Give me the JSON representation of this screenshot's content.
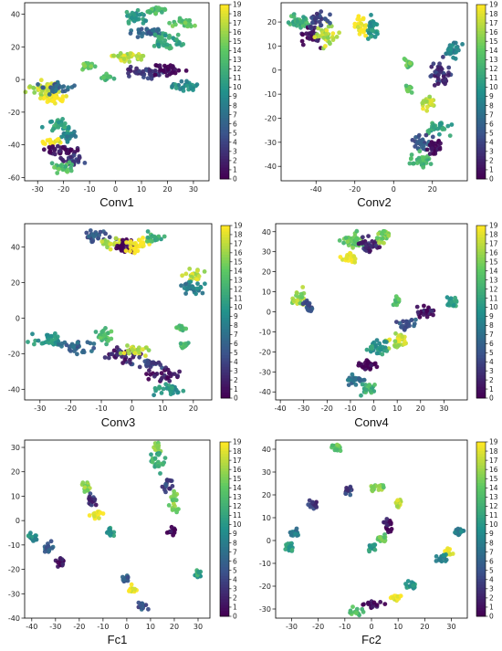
{
  "figure": {
    "background": "#ffffff"
  },
  "colormap": {
    "name": "viridis",
    "stops": [
      "#440154",
      "#3b528b",
      "#21918c",
      "#5ec962",
      "#fde725"
    ]
  },
  "chart_data": [
    {
      "type": "scatter",
      "caption": "Conv1",
      "xlim": [
        -35,
        36
      ],
      "ylim": [
        -62,
        47
      ],
      "xticks": [
        -30,
        -20,
        -10,
        0,
        10,
        20,
        30
      ],
      "yticks": [
        -60,
        -40,
        -20,
        0,
        20,
        40
      ],
      "colorbar": {
        "min": 0,
        "max": 19,
        "ticks": [
          0,
          1,
          2,
          3,
          4,
          5,
          6,
          7,
          8,
          9,
          10,
          11,
          12,
          13,
          14,
          15,
          16,
          17,
          18,
          19
        ]
      },
      "clusters": [
        {
          "x": -28,
          "y": -5,
          "w": 6,
          "h": 5,
          "c": 17
        },
        {
          "x": -24,
          "y": -12,
          "w": 5,
          "h": 3,
          "c": 19
        },
        {
          "x": -22,
          "y": -5,
          "w": 5,
          "h": 4,
          "c": 6
        },
        {
          "x": -21,
          "y": -28,
          "w": 5,
          "h": 4,
          "c": 11
        },
        {
          "x": -18,
          "y": -35,
          "w": 4,
          "h": 3,
          "c": 8
        },
        {
          "x": -24,
          "y": -38,
          "w": 4,
          "h": 2,
          "c": 19
        },
        {
          "x": -20,
          "y": -44,
          "w": 7,
          "h": 3,
          "c": 1
        },
        {
          "x": -16,
          "y": -50,
          "w": 5,
          "h": 3,
          "c": 3
        },
        {
          "x": -21,
          "y": -54,
          "w": 4,
          "h": 3,
          "c": 13
        },
        {
          "x": -11,
          "y": 8,
          "w": 3,
          "h": 2,
          "c": 14
        },
        {
          "x": -4,
          "y": 1,
          "w": 3,
          "h": 2,
          "c": 13
        },
        {
          "x": 5,
          "y": 14,
          "w": 7,
          "h": 3,
          "c": 17
        },
        {
          "x": 8,
          "y": 38,
          "w": 4,
          "h": 4,
          "c": 10
        },
        {
          "x": 15,
          "y": 42,
          "w": 4,
          "h": 2,
          "c": 13
        },
        {
          "x": 13,
          "y": 29,
          "w": 7,
          "h": 3,
          "c": 6
        },
        {
          "x": 20,
          "y": 24,
          "w": 6,
          "h": 4,
          "c": 11
        },
        {
          "x": 26,
          "y": 35,
          "w": 5,
          "h": 3,
          "c": 14
        },
        {
          "x": 12,
          "y": 4,
          "w": 7,
          "h": 4,
          "c": 3
        },
        {
          "x": 20,
          "y": 6,
          "w": 6,
          "h": 3,
          "c": 0
        },
        {
          "x": 27,
          "y": -4,
          "w": 5,
          "h": 3,
          "c": 9
        }
      ]
    },
    {
      "type": "scatter",
      "caption": "Conv2",
      "xlim": [
        -58,
        38
      ],
      "ylim": [
        -46,
        28
      ],
      "xticks": [
        -40,
        -20,
        0,
        20
      ],
      "yticks": [
        -40,
        -30,
        -20,
        -10,
        0,
        10,
        20
      ],
      "colorbar": {
        "min": 0,
        "max": 19,
        "ticks": [
          0,
          1,
          2,
          3,
          4,
          5,
          6,
          7,
          8,
          9,
          10,
          11,
          12,
          13,
          14,
          15,
          16,
          17,
          18,
          19
        ]
      },
      "clusters": [
        {
          "x": -48,
          "y": 20,
          "w": 6,
          "h": 3,
          "c": 12
        },
        {
          "x": -42,
          "y": 14,
          "w": 5,
          "h": 4,
          "c": 1
        },
        {
          "x": -35,
          "y": 15,
          "w": 5,
          "h": 5,
          "c": 17
        },
        {
          "x": -38,
          "y": 21,
          "w": 5,
          "h": 3,
          "c": 4
        },
        {
          "x": -16,
          "y": 19,
          "w": 4,
          "h": 4,
          "c": 19
        },
        {
          "x": -11,
          "y": 17,
          "w": 3,
          "h": 5,
          "c": 10
        },
        {
          "x": 8,
          "y": 3,
          "w": 2,
          "h": 2,
          "c": 14
        },
        {
          "x": 8,
          "y": -8,
          "w": 2,
          "h": 2,
          "c": 14
        },
        {
          "x": 30,
          "y": 8,
          "w": 4,
          "h": 4,
          "c": 8
        },
        {
          "x": 24,
          "y": -2,
          "w": 5,
          "h": 5,
          "c": 3
        },
        {
          "x": 18,
          "y": -14,
          "w": 4,
          "h": 3,
          "c": 17
        },
        {
          "x": 23,
          "y": -24,
          "w": 6,
          "h": 3,
          "c": 11
        },
        {
          "x": 15,
          "y": -30,
          "w": 6,
          "h": 3,
          "c": 5
        },
        {
          "x": 14,
          "y": -38,
          "w": 6,
          "h": 3,
          "c": 13
        },
        {
          "x": 22,
          "y": -32,
          "w": 4,
          "h": 3,
          "c": 0
        }
      ]
    },
    {
      "type": "scatter",
      "caption": "Conv3",
      "xlim": [
        -35,
        26
      ],
      "ylim": [
        -46,
        53
      ],
      "xticks": [
        -30,
        -20,
        -10,
        0,
        10,
        20
      ],
      "yticks": [
        -40,
        -20,
        0,
        20,
        40
      ],
      "colorbar": {
        "min": 0,
        "max": 19,
        "ticks": [
          0,
          1,
          2,
          3,
          4,
          5,
          6,
          7,
          8,
          9,
          10,
          11,
          12,
          13,
          14,
          15,
          16,
          17,
          18,
          19
        ]
      },
      "clusters": [
        {
          "x": -12,
          "y": 46,
          "w": 5,
          "h": 3,
          "c": 5
        },
        {
          "x": -7,
          "y": 42,
          "w": 4,
          "h": 3,
          "c": 17
        },
        {
          "x": -2,
          "y": 40,
          "w": 4,
          "h": 4,
          "c": 0
        },
        {
          "x": 3,
          "y": 41,
          "w": 4,
          "h": 4,
          "c": 19
        },
        {
          "x": 7,
          "y": 45,
          "w": 3,
          "h": 3,
          "c": 12
        },
        {
          "x": 20,
          "y": 24,
          "w": 3,
          "h": 3,
          "c": 17
        },
        {
          "x": 20,
          "y": 17,
          "w": 4,
          "h": 4,
          "c": 8
        },
        {
          "x": 16,
          "y": -6,
          "w": 2,
          "h": 2,
          "c": 13
        },
        {
          "x": 17,
          "y": -15,
          "w": 2,
          "h": 2,
          "c": 13
        },
        {
          "x": -27,
          "y": -12,
          "w": 5,
          "h": 4,
          "c": 10
        },
        {
          "x": -18,
          "y": -16,
          "w": 5,
          "h": 4,
          "c": 6
        },
        {
          "x": -9,
          "y": -10,
          "w": 3,
          "h": 4,
          "c": 13
        },
        {
          "x": -4,
          "y": -20,
          "w": 5,
          "h": 4,
          "c": 2
        },
        {
          "x": 1,
          "y": -18,
          "w": 4,
          "h": 3,
          "c": 17
        },
        {
          "x": 5,
          "y": -26,
          "w": 5,
          "h": 3,
          "c": 4
        },
        {
          "x": 10,
          "y": -32,
          "w": 5,
          "h": 3,
          "c": 1
        },
        {
          "x": 12,
          "y": -40,
          "w": 5,
          "h": 3,
          "c": 10
        }
      ]
    },
    {
      "type": "scatter",
      "caption": "Conv4",
      "xlim": [
        -42,
        40
      ],
      "ylim": [
        -44,
        44
      ],
      "xticks": [
        -40,
        -30,
        -20,
        -10,
        0,
        10,
        20,
        30
      ],
      "yticks": [
        -40,
        -30,
        -20,
        -10,
        0,
        10,
        20,
        30,
        40
      ],
      "colorbar": {
        "min": 0,
        "max": 19,
        "ticks": [
          0,
          1,
          2,
          3,
          4,
          5,
          6,
          7,
          8,
          9,
          10,
          11,
          12,
          13,
          14,
          15,
          16,
          17,
          18,
          19
        ]
      },
      "clusters": [
        {
          "x": -10,
          "y": 36,
          "w": 5,
          "h": 4,
          "c": 14
        },
        {
          "x": -2,
          "y": 34,
          "w": 4,
          "h": 4,
          "c": 2
        },
        {
          "x": 4,
          "y": 37,
          "w": 3,
          "h": 3,
          "c": 15
        },
        {
          "x": -10,
          "y": 27,
          "w": 4,
          "h": 3,
          "c": 19
        },
        {
          "x": -32,
          "y": 7,
          "w": 3,
          "h": 4,
          "c": 16
        },
        {
          "x": -28,
          "y": 3,
          "w": 3,
          "h": 3,
          "c": 5
        },
        {
          "x": 10,
          "y": 5,
          "w": 2,
          "h": 2,
          "c": 14
        },
        {
          "x": 22,
          "y": 0,
          "w": 4,
          "h": 3,
          "c": 1
        },
        {
          "x": 33,
          "y": 5,
          "w": 3,
          "h": 3,
          "c": 11
        },
        {
          "x": 14,
          "y": -6,
          "w": 4,
          "h": 3,
          "c": 5
        },
        {
          "x": 10,
          "y": -15,
          "w": 4,
          "h": 4,
          "c": 17
        },
        {
          "x": 2,
          "y": -18,
          "w": 4,
          "h": 4,
          "c": 10
        },
        {
          "x": -3,
          "y": -26,
          "w": 4,
          "h": 3,
          "c": 0
        },
        {
          "x": -8,
          "y": -34,
          "w": 4,
          "h": 3,
          "c": 7
        },
        {
          "x": -2,
          "y": -38,
          "w": 4,
          "h": 3,
          "c": 12
        }
      ]
    },
    {
      "type": "scatter",
      "caption": "Fc1",
      "xlim": [
        -43,
        35
      ],
      "ylim": [
        -40,
        33
      ],
      "xticks": [
        -40,
        -30,
        -20,
        -10,
        0,
        10,
        20,
        30
      ],
      "yticks": [
        -40,
        -30,
        -20,
        -10,
        0,
        10,
        20,
        30
      ],
      "colorbar": {
        "min": 0,
        "max": 19,
        "ticks": [
          0,
          1,
          2,
          3,
          4,
          5,
          6,
          7,
          8,
          9,
          10,
          11,
          12,
          13,
          14,
          15,
          16,
          17,
          18,
          19
        ]
      },
      "clusters": [
        {
          "x": 12,
          "y": 30,
          "w": 2,
          "h": 2,
          "c": 16
        },
        {
          "x": 13,
          "y": 24,
          "w": 3,
          "h": 4,
          "c": 12
        },
        {
          "x": 18,
          "y": 15,
          "w": 2,
          "h": 3,
          "c": 4
        },
        {
          "x": 20,
          "y": 8,
          "w": 2,
          "h": 4,
          "c": 15
        },
        {
          "x": 19,
          "y": -4,
          "w": 2,
          "h": 2,
          "c": 0
        },
        {
          "x": 30,
          "y": -22,
          "w": 2,
          "h": 2,
          "c": 11
        },
        {
          "x": -17,
          "y": 14,
          "w": 2,
          "h": 2,
          "c": 16
        },
        {
          "x": -15,
          "y": 8,
          "w": 2,
          "h": 3,
          "c": 3
        },
        {
          "x": -13,
          "y": 2,
          "w": 2,
          "h": 2,
          "c": 19
        },
        {
          "x": -7,
          "y": -5,
          "w": 2,
          "h": 2,
          "c": 10
        },
        {
          "x": -40,
          "y": -7,
          "w": 2,
          "h": 2,
          "c": 9
        },
        {
          "x": -33,
          "y": -11,
          "w": 2,
          "h": 2,
          "c": 6
        },
        {
          "x": -28,
          "y": -17,
          "w": 2,
          "h": 2,
          "c": 1
        },
        {
          "x": -0.5,
          "y": -24,
          "w": 2,
          "h": 2,
          "c": 6
        },
        {
          "x": 2,
          "y": -28,
          "w": 1.5,
          "h": 2,
          "c": 19
        },
        {
          "x": 7,
          "y": -35,
          "w": 2,
          "h": 1.5,
          "c": 5
        }
      ]
    },
    {
      "type": "scatter",
      "caption": "Fc2",
      "xlim": [
        -36,
        36
      ],
      "ylim": [
        -34,
        44
      ],
      "xticks": [
        -30,
        -20,
        -10,
        0,
        10,
        20,
        30
      ],
      "yticks": [
        -30,
        -20,
        -10,
        0,
        10,
        20,
        30,
        40
      ],
      "colorbar": {
        "min": 0,
        "max": 19,
        "ticks": [
          0,
          1,
          2,
          3,
          4,
          5,
          6,
          7,
          8,
          9,
          10,
          11,
          12,
          13,
          14,
          15,
          16,
          17,
          18,
          19
        ]
      },
      "clusters": [
        {
          "x": -13,
          "y": 41,
          "w": 2,
          "h": 2,
          "c": 14
        },
        {
          "x": -22,
          "y": 16,
          "w": 2,
          "h": 2,
          "c": 3
        },
        {
          "x": -9,
          "y": 22,
          "w": 2,
          "h": 2,
          "c": 4
        },
        {
          "x": -29,
          "y": 3,
          "w": 2,
          "h": 2,
          "c": 8
        },
        {
          "x": -31,
          "y": -3,
          "w": 2,
          "h": 2,
          "c": 11
        },
        {
          "x": 3,
          "y": 23,
          "w": 3,
          "h": 2,
          "c": 15
        },
        {
          "x": 10,
          "y": 16,
          "w": 2,
          "h": 2,
          "c": 17
        },
        {
          "x": 6,
          "y": 7,
          "w": 2,
          "h": 3,
          "c": 1
        },
        {
          "x": 4,
          "y": 1,
          "w": 2,
          "h": 2,
          "c": 14
        },
        {
          "x": 0,
          "y": -3,
          "w": 2,
          "h": 2,
          "c": 10
        },
        {
          "x": 33,
          "y": 4,
          "w": 2,
          "h": 2,
          "c": 8
        },
        {
          "x": 29,
          "y": -5,
          "w": 2,
          "h": 2,
          "c": 19
        },
        {
          "x": 27,
          "y": -8,
          "w": 2,
          "h": 2,
          "c": 9
        },
        {
          "x": 15,
          "y": -20,
          "w": 2,
          "h": 2,
          "c": 10
        },
        {
          "x": 9,
          "y": -25,
          "w": 2,
          "h": 1.5,
          "c": 19
        },
        {
          "x": 0,
          "y": -28,
          "w": 4,
          "h": 1.5,
          "c": 1
        },
        {
          "x": -6,
          "y": -31,
          "w": 3,
          "h": 1.5,
          "c": 13
        }
      ]
    }
  ]
}
